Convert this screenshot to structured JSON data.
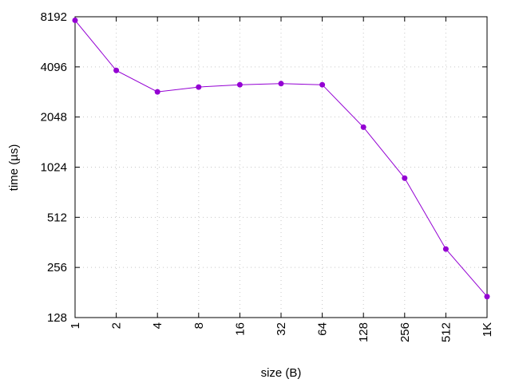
{
  "chart_data": {
    "type": "line",
    "xlabel": "size (B)",
    "ylabel": "time (µs)",
    "x_scale": "log2",
    "y_scale": "log2",
    "grid": true,
    "x_ticks": [
      {
        "value": 1,
        "label": "1"
      },
      {
        "value": 2,
        "label": "2"
      },
      {
        "value": 4,
        "label": "4"
      },
      {
        "value": 8,
        "label": "8"
      },
      {
        "value": 16,
        "label": "16"
      },
      {
        "value": 32,
        "label": "32"
      },
      {
        "value": 64,
        "label": "64"
      },
      {
        "value": 128,
        "label": "128"
      },
      {
        "value": 256,
        "label": "256"
      },
      {
        "value": 512,
        "label": "512"
      },
      {
        "value": 1024,
        "label": "1K"
      }
    ],
    "y_ticks": [
      {
        "value": 128,
        "label": "128"
      },
      {
        "value": 256,
        "label": "256"
      },
      {
        "value": 512,
        "label": "512"
      },
      {
        "value": 1024,
        "label": "1024"
      },
      {
        "value": 2048,
        "label": "2048"
      },
      {
        "value": 4096,
        "label": "4096"
      },
      {
        "value": 8192,
        "label": "8192"
      }
    ],
    "xlim": [
      1,
      1024
    ],
    "ylim": [
      128,
      8192
    ],
    "series": [
      {
        "color": "#9400d3",
        "x": [
          1,
          2,
          4,
          8,
          16,
          32,
          64,
          128,
          256,
          512,
          1024
        ],
        "y": [
          7800,
          3900,
          2900,
          3100,
          3200,
          3250,
          3200,
          1780,
          880,
          330,
          171
        ]
      }
    ]
  }
}
